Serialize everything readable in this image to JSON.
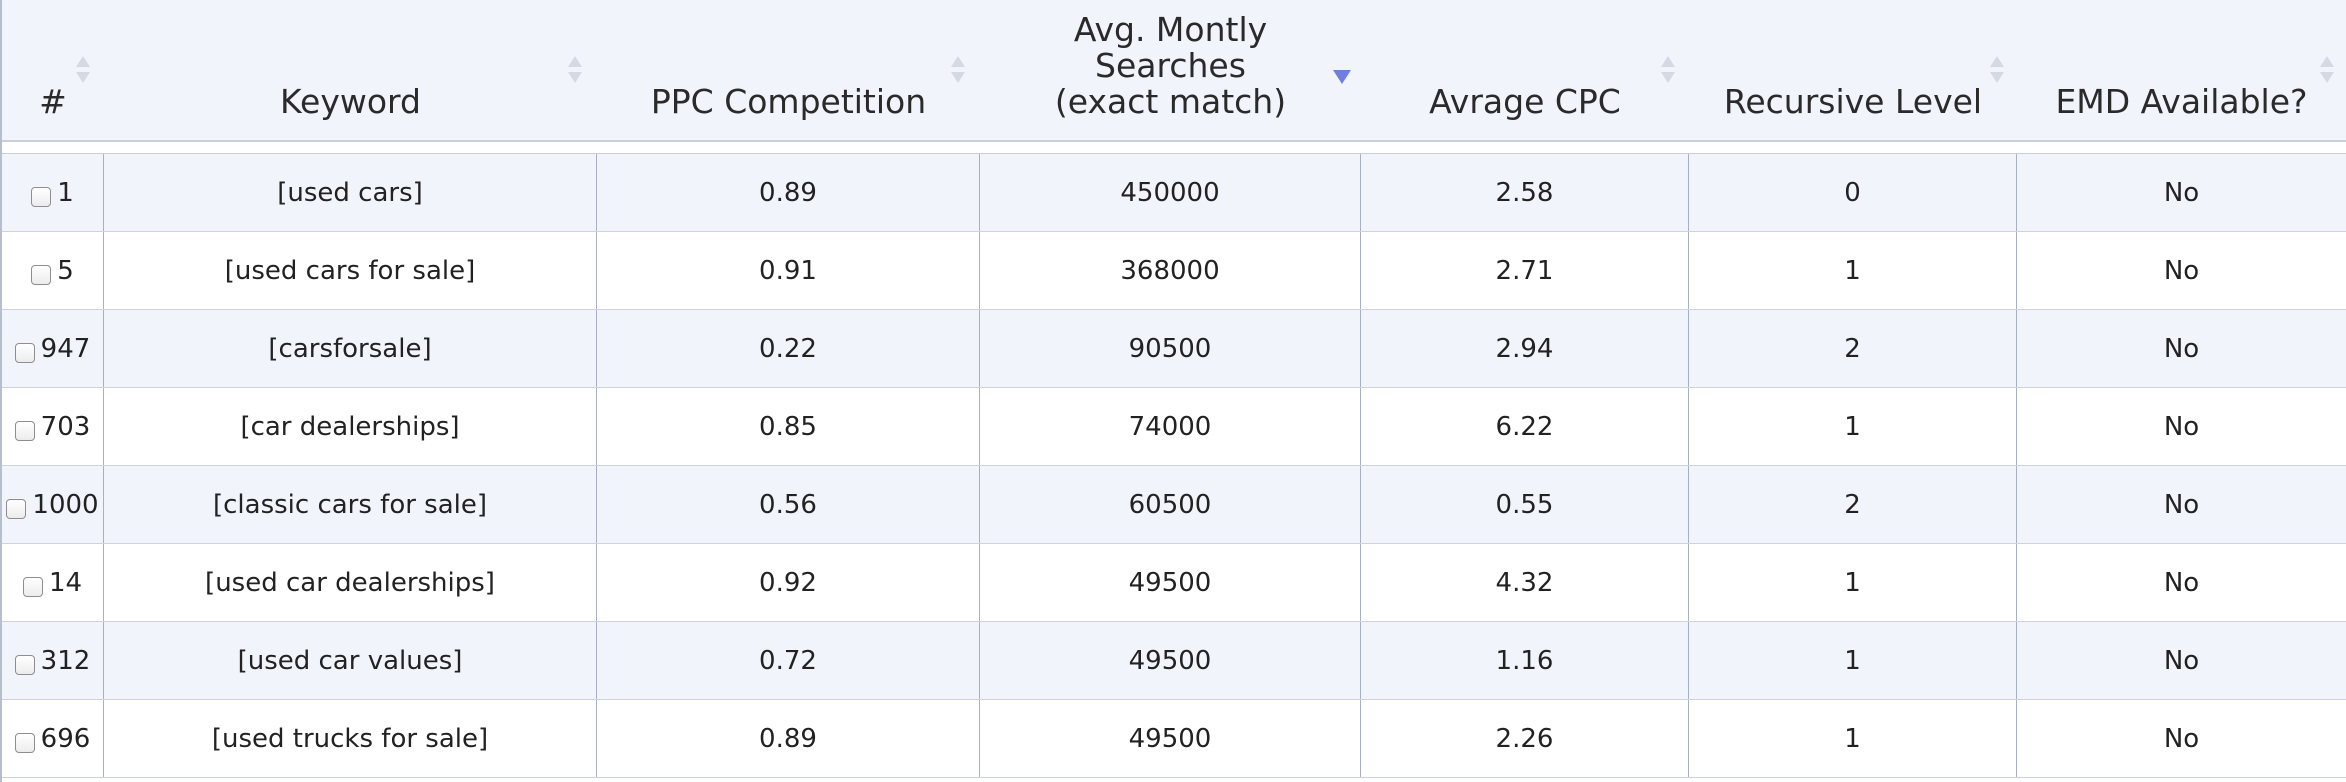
{
  "table": {
    "columns": [
      {
        "key": "num",
        "label": "#"
      },
      {
        "key": "keyword",
        "label": "Keyword"
      },
      {
        "key": "ppc",
        "label": "PPC Competition"
      },
      {
        "key": "searches",
        "label": "Avg. Montly\nSearches\n(exact match)"
      },
      {
        "key": "cpc",
        "label": "Avrage CPC"
      },
      {
        "key": "level",
        "label": "Recursive Level"
      },
      {
        "key": "emd",
        "label": "EMD Available?"
      }
    ],
    "sorted_column": "searches",
    "sort_direction": "descending",
    "accent_color": "#6f7fe0",
    "rows": [
      {
        "num": "1",
        "keyword": "[used cars]",
        "ppc": "0.89",
        "searches": "450000",
        "cpc": "2.58",
        "level": "0",
        "emd": "No",
        "checked": false
      },
      {
        "num": "5",
        "keyword": "[used cars for sale]",
        "ppc": "0.91",
        "searches": "368000",
        "cpc": "2.71",
        "level": "1",
        "emd": "No",
        "checked": false
      },
      {
        "num": "947",
        "keyword": "[carsforsale]",
        "ppc": "0.22",
        "searches": "90500",
        "cpc": "2.94",
        "level": "2",
        "emd": "No",
        "checked": false
      },
      {
        "num": "703",
        "keyword": "[car dealerships]",
        "ppc": "0.85",
        "searches": "74000",
        "cpc": "6.22",
        "level": "1",
        "emd": "No",
        "checked": false
      },
      {
        "num": "1000",
        "keyword": "[classic cars for sale]",
        "ppc": "0.56",
        "searches": "60500",
        "cpc": "0.55",
        "level": "2",
        "emd": "No",
        "checked": false
      },
      {
        "num": "14",
        "keyword": "[used car dealerships]",
        "ppc": "0.92",
        "searches": "49500",
        "cpc": "4.32",
        "level": "1",
        "emd": "No",
        "checked": false
      },
      {
        "num": "312",
        "keyword": "[used car values]",
        "ppc": "0.72",
        "searches": "49500",
        "cpc": "1.16",
        "level": "1",
        "emd": "No",
        "checked": false
      },
      {
        "num": "696",
        "keyword": "[used trucks for sale]",
        "ppc": "0.89",
        "searches": "49500",
        "cpc": "2.26",
        "level": "1",
        "emd": "No",
        "checked": false
      }
    ]
  }
}
